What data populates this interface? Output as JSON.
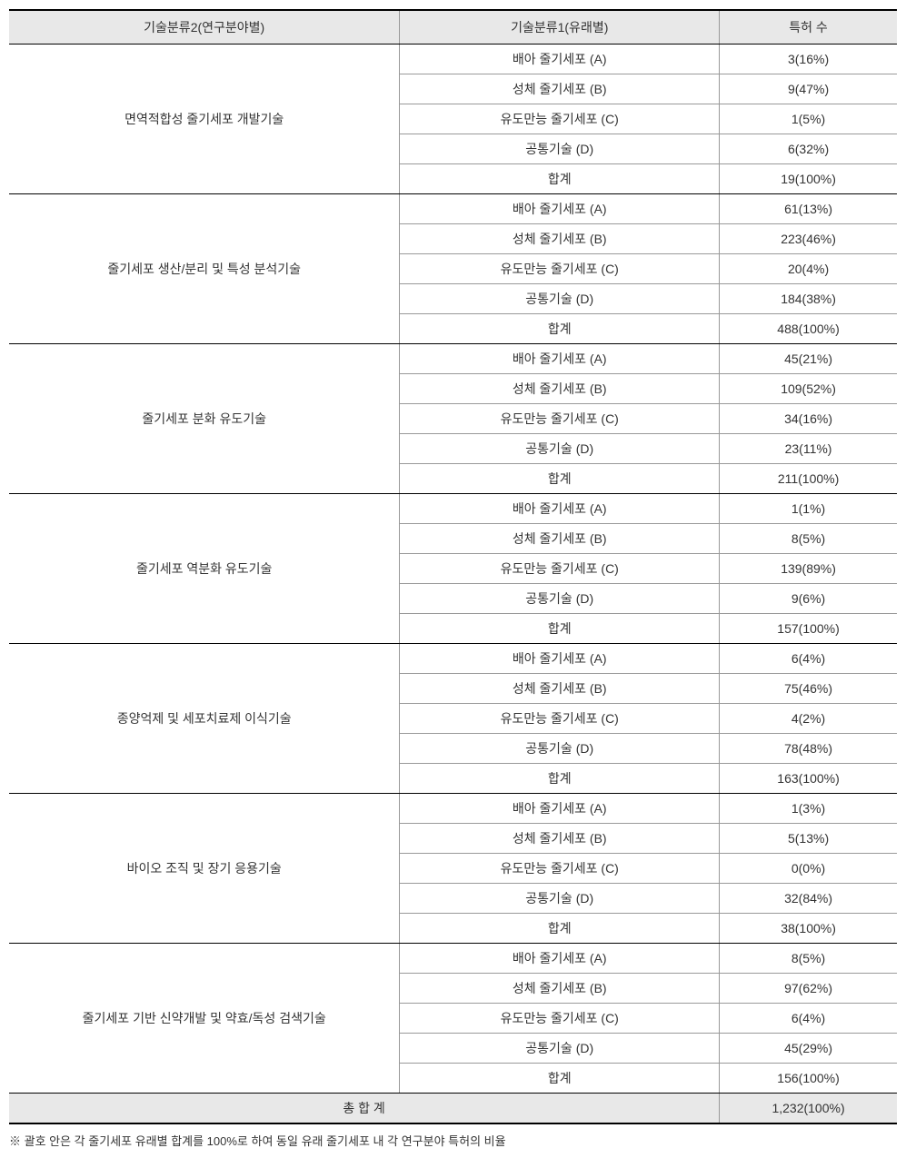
{
  "table": {
    "headers": {
      "col1": "기술분류2(연구분야별)",
      "col2": "기술분류1(유래별)",
      "col3": "특허 수"
    },
    "subcategories": [
      "배아 줄기세포 (A)",
      "성체 줄기세포 (B)",
      "유도만능 줄기세포 (C)",
      "공통기술 (D)",
      "합계"
    ],
    "groups": [
      {
        "label": "면역적합성 줄기세포 개발기술",
        "values": [
          "3(16%)",
          "9(47%)",
          "1(5%)",
          "6(32%)",
          "19(100%)"
        ]
      },
      {
        "label": "줄기세포 생산/분리 및 특성 분석기술",
        "values": [
          "61(13%)",
          "223(46%)",
          "20(4%)",
          "184(38%)",
          "488(100%)"
        ]
      },
      {
        "label": "줄기세포 분화 유도기술",
        "values": [
          "45(21%)",
          "109(52%)",
          "34(16%)",
          "23(11%)",
          "211(100%)"
        ]
      },
      {
        "label": "줄기세포 역분화 유도기술",
        "values": [
          "1(1%)",
          "8(5%)",
          "139(89%)",
          "9(6%)",
          "157(100%)"
        ]
      },
      {
        "label": "종양억제 및 세포치료제 이식기술",
        "values": [
          "6(4%)",
          "75(46%)",
          "4(2%)",
          "78(48%)",
          "163(100%)"
        ]
      },
      {
        "label": "바이오 조직 및 장기 응용기술",
        "values": [
          "1(3%)",
          "5(13%)",
          "0(0%)",
          "32(84%)",
          "38(100%)"
        ]
      },
      {
        "label": "줄기세포 기반 신약개발 및 약효/독성 검색기술",
        "values": [
          "8(5%)",
          "97(62%)",
          "6(4%)",
          "45(29%)",
          "156(100%)"
        ]
      }
    ],
    "total": {
      "label": "총 합 계",
      "value": "1,232(100%)"
    }
  },
  "footnote": "※ 괄호 안은 각 줄기세포 유래별 합계를 100%로 하여 동일 유래 줄기세포 내 각 연구분야 특허의 비율"
}
